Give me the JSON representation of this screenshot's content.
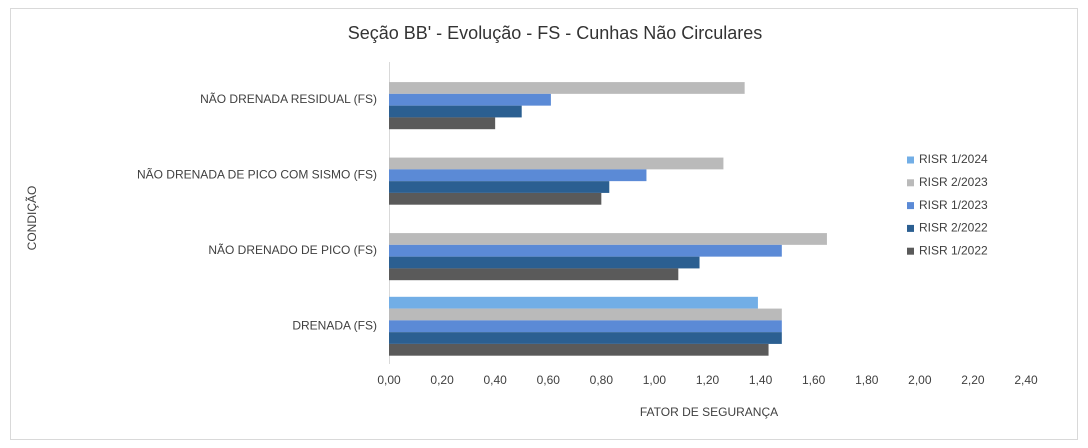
{
  "chart_data": {
    "type": "hbar",
    "title": "Seção BB' - Evolução - FS - Cunhas Não Circulares",
    "x_label": "FATOR DE SEGURANÇA",
    "y_label": "CONDIÇÃO",
    "categories": [
      "NÃO DRENADA RESIDUAL (FS)",
      "NÃO DRENADA DE PICO COM SISMO (FS)",
      "NÃO DRENADO DE  PICO (FS)",
      "DRENADA (FS)"
    ],
    "series": [
      {
        "name": "RISR 1/2024",
        "color": "#72aee6",
        "values": [
          null,
          null,
          null,
          1.39
        ]
      },
      {
        "name": "RISR 2/2023",
        "color": "#bababa",
        "values": [
          1.34,
          1.26,
          1.65,
          1.48
        ]
      },
      {
        "name": "RISR 1/2023",
        "color": "#5b8ad6",
        "values": [
          0.61,
          0.97,
          1.48,
          1.48
        ]
      },
      {
        "name": "RISR 2/2022",
        "color": "#2b5f91",
        "values": [
          0.5,
          0.83,
          1.17,
          1.48
        ]
      },
      {
        "name": "RISR 1/2022",
        "color": "#5a5a5a",
        "values": [
          0.4,
          0.8,
          1.09,
          1.43
        ]
      }
    ],
    "xlim": [
      0,
      2.4
    ],
    "xticks": [
      {
        "value": 0,
        "label": "0,00"
      },
      {
        "value": 0.2,
        "label": "0,20"
      },
      {
        "value": 0.4,
        "label": "0,40"
      },
      {
        "value": 0.6,
        "label": "0,60"
      },
      {
        "value": 0.8,
        "label": "0,80"
      },
      {
        "value": 1.0,
        "label": "1,00"
      },
      {
        "value": 1.2,
        "label": "1,20"
      },
      {
        "value": 1.4,
        "label": "1,40"
      },
      {
        "value": 1.6,
        "label": "1,60"
      },
      {
        "value": 1.8,
        "label": "1,80"
      },
      {
        "value": 2.0,
        "label": "2,00"
      },
      {
        "value": 2.2,
        "label": "2,20"
      },
      {
        "value": 2.4,
        "label": "2,40"
      }
    ],
    "grid": false,
    "legend": "right"
  }
}
